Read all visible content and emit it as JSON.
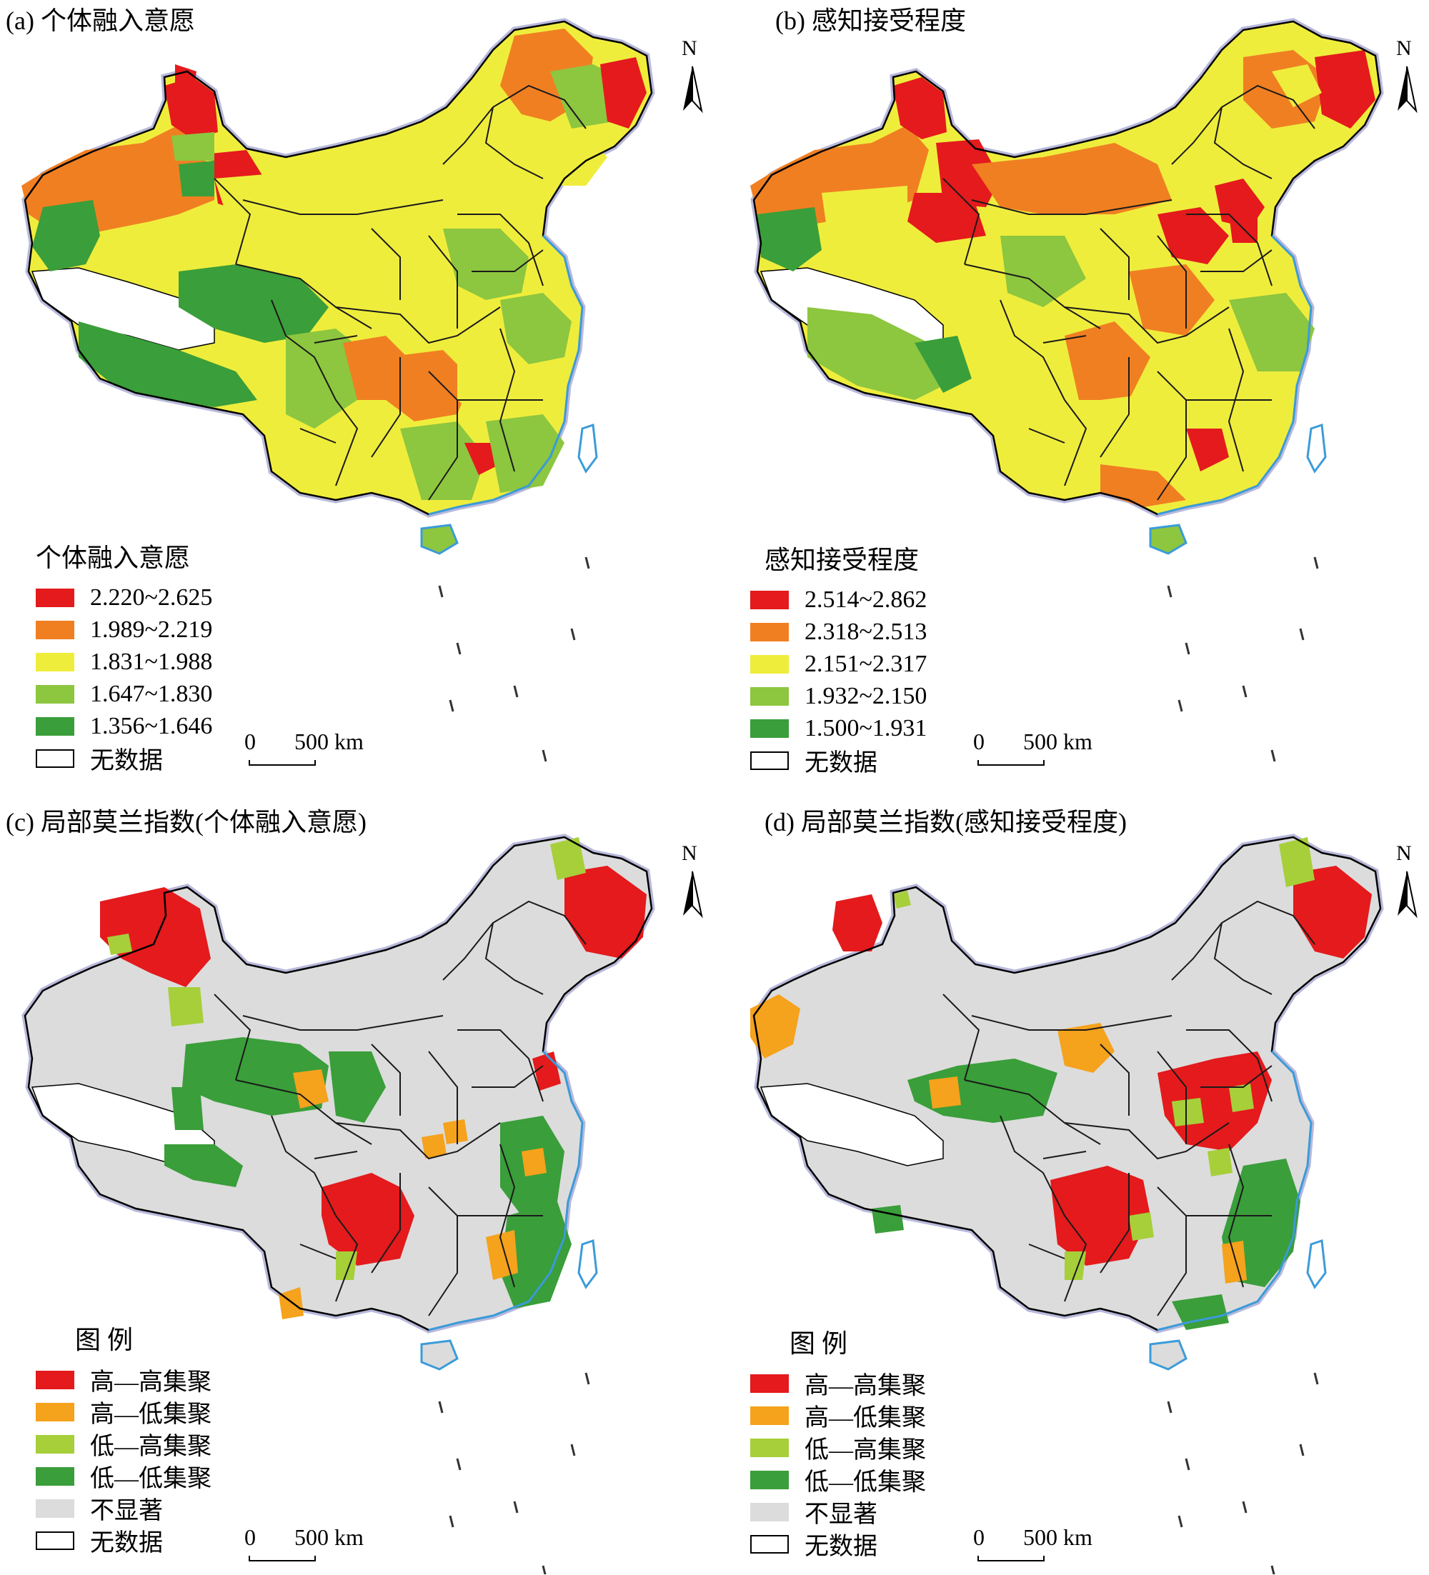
{
  "panels": [
    {
      "id": "a",
      "title": "(a) 个体融入意愿",
      "legend_title": "个体融入意愿",
      "legend": [
        {
          "label": "2.220~2.625",
          "color": "#e41a1c"
        },
        {
          "label": "1.989~2.219",
          "color": "#f07f22"
        },
        {
          "label": "1.831~1.988",
          "color": "#efed3c"
        },
        {
          "label": "1.647~1.830",
          "color": "#8dc63f"
        },
        {
          "label": "1.356~1.646",
          "color": "#3a9e3a"
        },
        {
          "label": "无数据",
          "color": "#ffffff"
        }
      ]
    },
    {
      "id": "b",
      "title": "(b) 感知接受程度",
      "legend_title": "感知接受程度",
      "legend": [
        {
          "label": "2.514~2.862",
          "color": "#e41a1c"
        },
        {
          "label": "2.318~2.513",
          "color": "#f07f22"
        },
        {
          "label": "2.151~2.317",
          "color": "#efed3c"
        },
        {
          "label": "1.932~2.150",
          "color": "#8dc63f"
        },
        {
          "label": "1.500~1.931",
          "color": "#3a9e3a"
        },
        {
          "label": "无数据",
          "color": "#ffffff"
        }
      ]
    },
    {
      "id": "c",
      "title": "(c) 局部莫兰指数(个体融入意愿)",
      "legend_title": "图 例",
      "legend": [
        {
          "label": "高—高集聚",
          "color": "#e41a1c"
        },
        {
          "label": "高—低集聚",
          "color": "#f5a21c"
        },
        {
          "label": "低—高集聚",
          "color": "#a6cf3a"
        },
        {
          "label": "低—低集聚",
          "color": "#3a9e3a"
        },
        {
          "label": "不显著",
          "color": "#dcdcdc"
        },
        {
          "label": "无数据",
          "color": "#ffffff"
        }
      ]
    },
    {
      "id": "d",
      "title": "(d) 局部莫兰指数(感知接受程度)",
      "legend_title": "图 例",
      "legend": [
        {
          "label": "高—高集聚",
          "color": "#e41a1c"
        },
        {
          "label": "高—低集聚",
          "color": "#f5a21c"
        },
        {
          "label": "低—高集聚",
          "color": "#a6cf3a"
        },
        {
          "label": "低—低集聚",
          "color": "#3a9e3a"
        },
        {
          "label": "不显著",
          "color": "#dcdcdc"
        },
        {
          "label": "无数据",
          "color": "#ffffff"
        }
      ]
    }
  ],
  "scale": {
    "zero": "0",
    "distance": "500 km"
  },
  "north_label": "N",
  "colors": {
    "coast": "#3b9bd9",
    "boundary": "#1a1a1a",
    "outer_halo": "#b9b9dc"
  }
}
